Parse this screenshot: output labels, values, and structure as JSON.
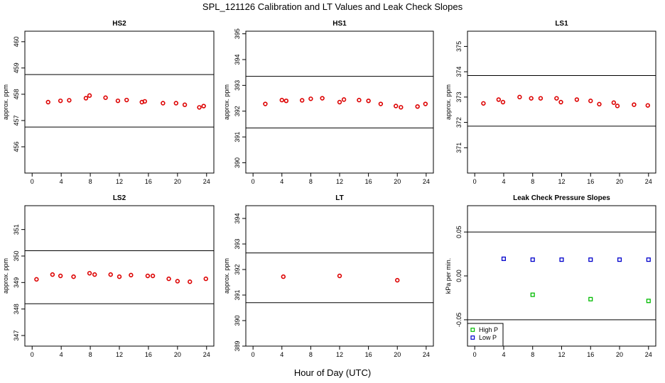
{
  "figure": {
    "title": "SPL_121126  Calibration and LT Values and Leak Check Slopes",
    "xlabel": "Hour of Day (UTC)"
  },
  "chart_data": [
    {
      "id": "hs2",
      "type": "scatter",
      "title": "HS2",
      "ylabel": "approx. ppm",
      "xlim": [
        -1,
        25
      ],
      "ylim": [
        455,
        460.4
      ],
      "xticks": [
        0,
        4,
        8,
        12,
        16,
        20,
        24
      ],
      "yticks": [
        456,
        457,
        458,
        459,
        460
      ],
      "hlines": [
        458.75,
        456.75
      ],
      "series": [
        {
          "color": "#dd0000",
          "marker": "circle",
          "points": [
            [
              2.2,
              457.7
            ],
            [
              3.9,
              457.75
            ],
            [
              5.1,
              457.77
            ],
            [
              7.4,
              457.85
            ],
            [
              7.9,
              457.95
            ],
            [
              10.1,
              457.87
            ],
            [
              11.8,
              457.75
            ],
            [
              13.0,
              457.78
            ],
            [
              15.1,
              457.7
            ],
            [
              15.5,
              457.73
            ],
            [
              18.0,
              457.66
            ],
            [
              19.8,
              457.66
            ],
            [
              21.0,
              457.6
            ],
            [
              23.0,
              457.5
            ],
            [
              23.6,
              457.55
            ]
          ]
        }
      ]
    },
    {
      "id": "hs1",
      "type": "scatter",
      "title": "HS1",
      "ylabel": "approx. ppm",
      "xlim": [
        -1,
        25
      ],
      "ylim": [
        389.6,
        395.1
      ],
      "xticks": [
        0,
        4,
        8,
        12,
        16,
        20,
        24
      ],
      "yticks": [
        390,
        391,
        392,
        393,
        394,
        395
      ],
      "hlines": [
        393.35,
        391.35
      ],
      "series": [
        {
          "color": "#dd0000",
          "marker": "circle",
          "points": [
            [
              1.7,
              392.28
            ],
            [
              4.0,
              392.43
            ],
            [
              4.6,
              392.4
            ],
            [
              6.8,
              392.42
            ],
            [
              8.0,
              392.48
            ],
            [
              9.6,
              392.5
            ],
            [
              12.0,
              392.35
            ],
            [
              12.6,
              392.45
            ],
            [
              14.7,
              392.43
            ],
            [
              16.0,
              392.4
            ],
            [
              17.7,
              392.28
            ],
            [
              19.8,
              392.2
            ],
            [
              20.5,
              392.15
            ],
            [
              22.8,
              392.18
            ],
            [
              23.9,
              392.28
            ]
          ]
        }
      ]
    },
    {
      "id": "ls1",
      "type": "scatter",
      "title": "LS1",
      "ylabel": "approx. ppm",
      "xlim": [
        -1,
        25
      ],
      "ylim": [
        370,
        375.6
      ],
      "xticks": [
        0,
        4,
        8,
        12,
        16,
        20,
        24
      ],
      "yticks": [
        371,
        372,
        373,
        374,
        375
      ],
      "hlines": [
        373.85,
        371.85
      ],
      "series": [
        {
          "color": "#dd0000",
          "marker": "circle",
          "points": [
            [
              1.2,
              372.75
            ],
            [
              3.3,
              372.9
            ],
            [
              3.9,
              372.8
            ],
            [
              6.2,
              373.0
            ],
            [
              7.8,
              372.95
            ],
            [
              9.1,
              372.95
            ],
            [
              11.3,
              372.95
            ],
            [
              11.9,
              372.8
            ],
            [
              14.1,
              372.9
            ],
            [
              16.0,
              372.85
            ],
            [
              17.2,
              372.72
            ],
            [
              19.2,
              372.78
            ],
            [
              19.7,
              372.65
            ],
            [
              22.0,
              372.7
            ],
            [
              23.9,
              372.67
            ]
          ]
        }
      ]
    },
    {
      "id": "ls2",
      "type": "scatter",
      "title": "LS2",
      "ylabel": "approx. ppm",
      "xlim": [
        -1,
        25
      ],
      "ylim": [
        346.6,
        351.9
      ],
      "xticks": [
        0,
        4,
        8,
        12,
        16,
        20,
        24
      ],
      "yticks": [
        347,
        348,
        349,
        350,
        351
      ],
      "hlines": [
        350.2,
        348.2
      ],
      "series": [
        {
          "color": "#dd0000",
          "marker": "circle",
          "points": [
            [
              0.6,
              349.12
            ],
            [
              2.8,
              349.3
            ],
            [
              3.9,
              349.25
            ],
            [
              5.7,
              349.22
            ],
            [
              7.9,
              349.35
            ],
            [
              8.6,
              349.3
            ],
            [
              10.8,
              349.3
            ],
            [
              12.0,
              349.22
            ],
            [
              13.6,
              349.28
            ],
            [
              15.9,
              349.25
            ],
            [
              16.6,
              349.25
            ],
            [
              18.8,
              349.14
            ],
            [
              20.0,
              349.05
            ],
            [
              21.7,
              349.03
            ],
            [
              23.9,
              349.14
            ]
          ]
        }
      ]
    },
    {
      "id": "lt",
      "type": "scatter",
      "title": "LT",
      "ylabel": "approx. ppm",
      "xlim": [
        -1,
        25
      ],
      "ylim": [
        389,
        394.5
      ],
      "xticks": [
        0,
        4,
        8,
        12,
        16,
        20,
        24
      ],
      "yticks": [
        389,
        390,
        391,
        392,
        393,
        394
      ],
      "hlines": [
        392.65,
        390.7
      ],
      "series": [
        {
          "color": "#dd0000",
          "marker": "circle",
          "points": [
            [
              4.2,
              391.72
            ],
            [
              12.0,
              391.75
            ],
            [
              20.0,
              391.58
            ]
          ]
        }
      ]
    },
    {
      "id": "leak",
      "type": "scatter",
      "title": "Leak Check Pressure Slopes",
      "ylabel": "kPa per min.",
      "xlim": [
        -1,
        25
      ],
      "ylim": [
        -0.08,
        0.08
      ],
      "xticks": [
        0,
        4,
        8,
        12,
        16,
        20,
        24
      ],
      "yticks": [
        -0.05,
        0.0,
        0.05
      ],
      "ytick_labels": [
        "-0.05",
        "0.00",
        "0.05"
      ],
      "hlines": [
        0.05,
        -0.05
      ],
      "legend": {
        "position": "bottom-left",
        "entries": [
          {
            "label": "High P",
            "color": "#00bb00"
          },
          {
            "label": "Low P",
            "color": "#0000cc"
          }
        ]
      },
      "series": [
        {
          "name": "High P",
          "color": "#00bb00",
          "marker": "square-open",
          "points": [
            [
              8.0,
              -0.0215
            ],
            [
              16.0,
              -0.0265
            ],
            [
              24.0,
              -0.0285
            ]
          ]
        },
        {
          "name": "Low P",
          "color": "#0000cc",
          "marker": "square-open",
          "points": [
            [
              4.0,
              0.0195
            ],
            [
              8.0,
              0.0185
            ],
            [
              12.0,
              0.0185
            ],
            [
              16.0,
              0.0185
            ],
            [
              20.0,
              0.0185
            ],
            [
              24.0,
              0.0185
            ]
          ]
        }
      ]
    }
  ]
}
